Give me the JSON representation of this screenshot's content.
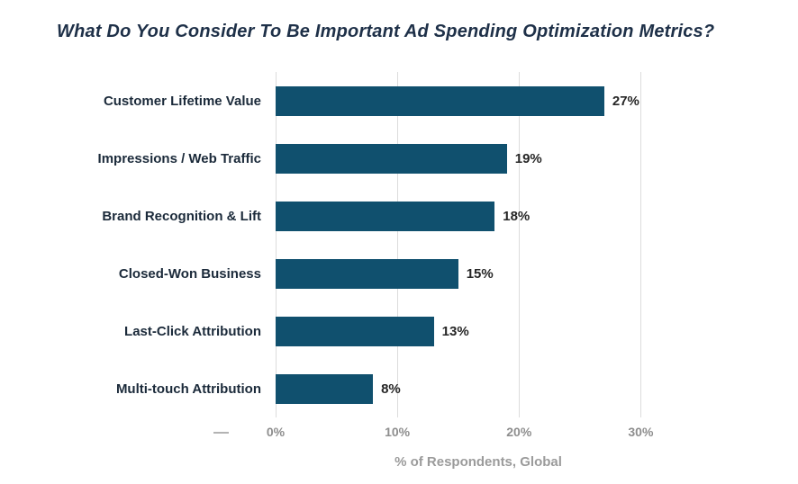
{
  "chart_data": {
    "type": "bar",
    "orientation": "horizontal",
    "title": "What Do You Consider To Be Important Ad Spending Optimization Metrics?",
    "categories": [
      "Customer Lifetime Value",
      "Impressions / Web Traffic",
      "Brand Recognition & Lift",
      "Closed-Won Business",
      "Last-Click Attribution",
      "Multi-touch Attribution"
    ],
    "values": [
      27,
      19,
      18,
      15,
      13,
      8
    ],
    "value_labels": [
      "27%",
      "19%",
      "18%",
      "15%",
      "13%",
      "8%"
    ],
    "xlabel": "% of Respondents, Global",
    "x_ticks": [
      "0%",
      "10%",
      "20%",
      "30%"
    ],
    "x_tick_values": [
      0,
      10,
      20,
      30
    ],
    "xlim": [
      0,
      33.3
    ],
    "grid": true,
    "legend": "none",
    "bar_color": "#10506e",
    "title_color": "#1e3048",
    "tick_color": "#8e8e8e"
  }
}
